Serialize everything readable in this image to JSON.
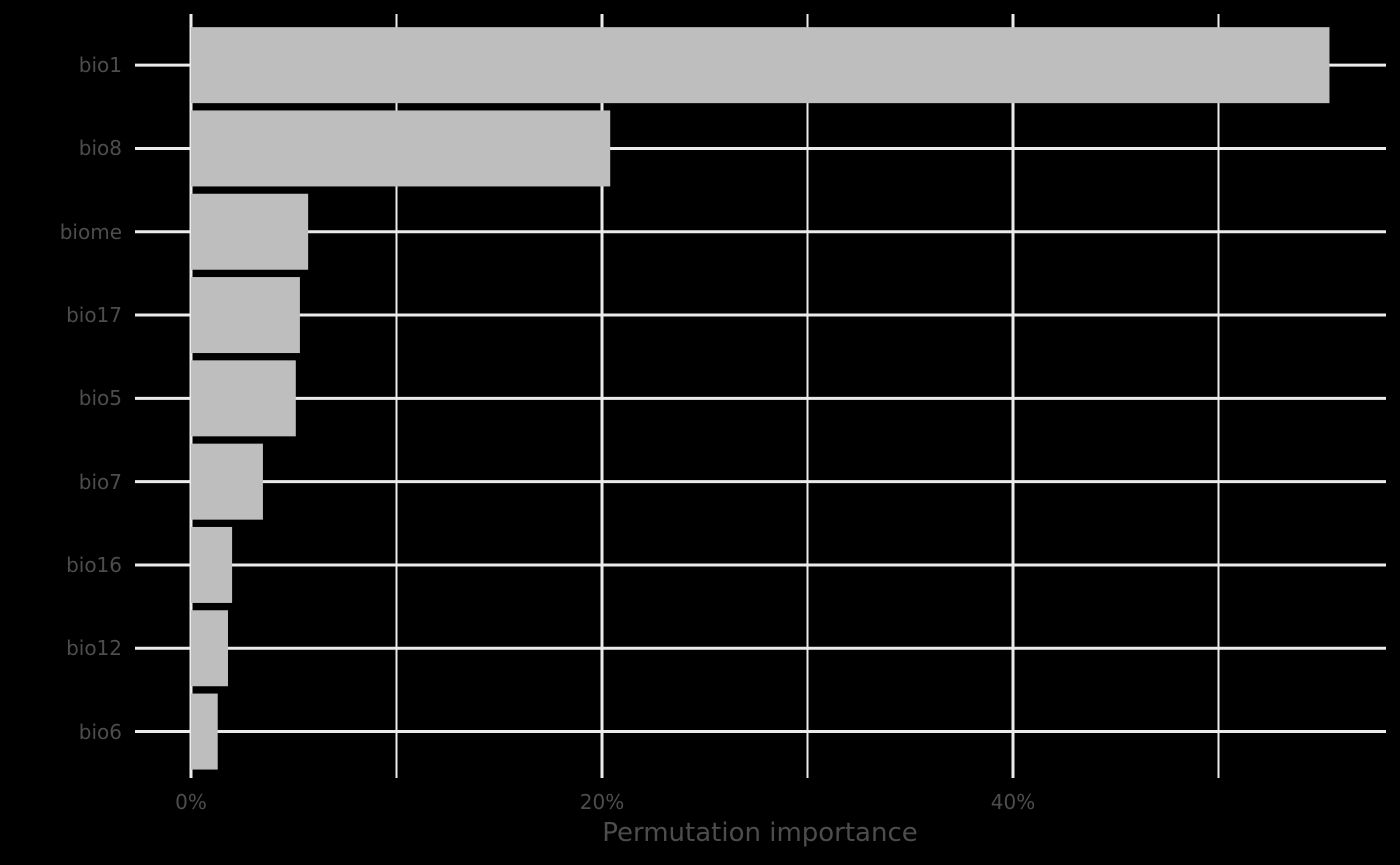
{
  "chart_data": {
    "type": "bar",
    "orientation": "horizontal",
    "title": "",
    "xlabel": "Permutation importance",
    "ylabel": "",
    "categories": [
      "bio1",
      "bio8",
      "biome",
      "bio17",
      "bio5",
      "bio7",
      "bio16",
      "bio12",
      "bio6"
    ],
    "values": [
      55.4,
      20.4,
      5.7,
      5.3,
      5.1,
      3.5,
      2.0,
      1.8,
      1.3
    ],
    "value_unit": "%",
    "xlim": [
      0,
      57.5
    ],
    "x_ticks": [
      "0%",
      "20%",
      "40%"
    ],
    "x_tick_values": [
      0,
      20,
      40
    ],
    "x_minor_gridlines": [
      10,
      30,
      50
    ],
    "grid": true,
    "legend": "none",
    "colors": {
      "background": "#000000",
      "bar_fill": "#bebebe",
      "gridline": "#ebebeb",
      "text": "#4d4d4d"
    }
  }
}
